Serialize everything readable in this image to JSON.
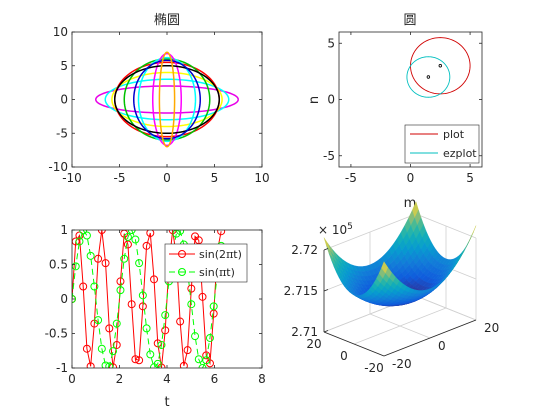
{
  "chart_data": [
    {
      "id": "ellipses",
      "type": "line",
      "title": "椭圆",
      "xlabel": "",
      "ylabel": "",
      "xlim": [
        -10,
        10
      ],
      "ylim": [
        -10,
        10
      ],
      "xticks": [
        "-10",
        "-5",
        "0",
        "5",
        "10"
      ],
      "yticks": [
        "-10",
        "-5",
        "0",
        "5",
        "10"
      ],
      "series": [
        {
          "a": 7.5,
          "b": 2.0,
          "color": "#e800e8"
        },
        {
          "a": 6.5,
          "b": 3.0,
          "color": "#00ffff"
        },
        {
          "a": 5.8,
          "b": 4.0,
          "color": "#ffff00"
        },
        {
          "a": 5.5,
          "b": 5.5,
          "color": "#ff0000"
        },
        {
          "a": 4.5,
          "b": 6.0,
          "color": "#00c000"
        },
        {
          "a": 3.0,
          "b": 6.2,
          "color": "#00ffff"
        },
        {
          "a": 1.5,
          "b": 6.8,
          "color": "#ff00ff"
        },
        {
          "a": 5.5,
          "b": 5.0,
          "color": "#000000"
        },
        {
          "a": 3.5,
          "b": 5.8,
          "color": "#0000cc"
        },
        {
          "a": 0.8,
          "b": 7.0,
          "color": "#ffaa00"
        }
      ]
    },
    {
      "id": "circles",
      "type": "line",
      "title": "圆",
      "xlabel": "m",
      "ylabel": "n",
      "xlim": [
        -6,
        6
      ],
      "ylim": [
        -6,
        6
      ],
      "xticks": [
        "-5",
        "0",
        "5"
      ],
      "yticks": [
        "-5",
        "0",
        "5"
      ],
      "series": [
        {
          "name": "plot",
          "cx": 2.5,
          "cy": 3.0,
          "r": 2.5,
          "color": "#d00000"
        },
        {
          "name": "ezplot",
          "cx": 1.5,
          "cy": 2.0,
          "r": 1.8,
          "color": "#00bfbf"
        }
      ],
      "points": [
        {
          "x": 2.5,
          "y": 3.0
        },
        {
          "x": 1.5,
          "y": 2.0
        }
      ],
      "legend": "bottom-right"
    },
    {
      "id": "sines",
      "type": "line",
      "title": "",
      "xlabel": "t",
      "ylabel": "",
      "xlim": [
        0,
        8
      ],
      "ylim": [
        -1,
        1
      ],
      "xticks": [
        "0",
        "2",
        "4",
        "6",
        "8"
      ],
      "yticks": [
        "-1",
        "-0.5",
        "0",
        "0.5",
        "1"
      ],
      "tmax": 6.28,
      "series": [
        {
          "name": "sin(2πt)",
          "name_main": "sin(2",
          "name_pi": "π",
          "name_tail": "t)",
          "freq": 2,
          "color": "#ff0000",
          "dash": ""
        },
        {
          "name": "sin(πt)",
          "name_main": "sin(",
          "name_pi": "π",
          "name_tail": "t)",
          "freq": 1,
          "color": "#00ff00",
          "dash": "6,4"
        }
      ],
      "legend": "top-right"
    },
    {
      "id": "surface",
      "type": "surface",
      "title": "",
      "exponent_base": "× 10",
      "exponent_power": "5",
      "zticks": [
        "2.71",
        "2.715",
        "2.72"
      ],
      "zlim": [
        2.71,
        2.72
      ],
      "xticks": [
        "-20",
        "0",
        "20"
      ],
      "yticks": [
        "-20",
        "0",
        "20"
      ],
      "xlim": [
        -20,
        20
      ],
      "ylim": [
        -20,
        20
      ],
      "colormap": "parula"
    }
  ]
}
